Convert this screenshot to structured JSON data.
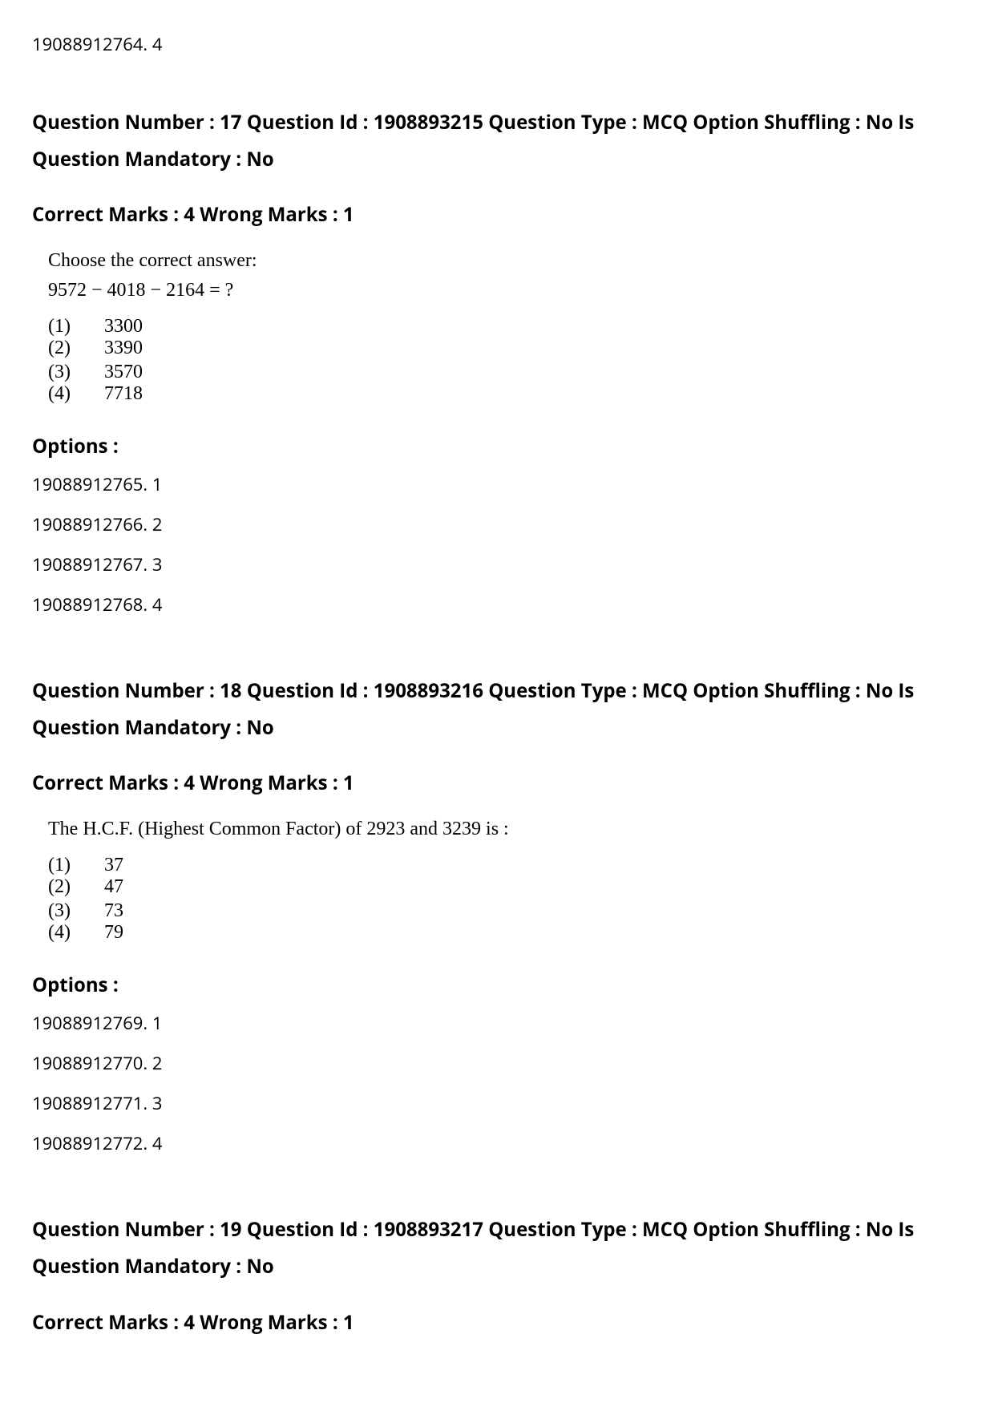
{
  "prev_option": "19088912764. 4",
  "questions": [
    {
      "header": "Question Number : 17 Question Id : 1908893215 Question Type : MCQ Option Shuffling : No Is Question Mandatory : No",
      "marks": "Correct Marks : 4 Wrong Marks : 1",
      "instruction": "Choose the correct answer:",
      "equation": "9572 − 4018 − 2164 = ?",
      "answers": [
        {
          "num": "(1)",
          "val": "3300"
        },
        {
          "num": "(2)",
          "val": "3390"
        },
        {
          "num": "(3)",
          "val": "3570"
        },
        {
          "num": "(4)",
          "val": "7718"
        }
      ],
      "options_label": "Options :",
      "options": [
        "19088912765. 1",
        "19088912766. 2",
        "19088912767. 3",
        "19088912768. 4"
      ]
    },
    {
      "header": "Question Number : 18 Question Id : 1908893216 Question Type : MCQ Option Shuffling : No Is Question Mandatory : No",
      "marks": "Correct Marks : 4 Wrong Marks : 1",
      "instruction": "The H.C.F. (Highest Common Factor) of 2923 and 3239 is :",
      "equation": "",
      "answers": [
        {
          "num": "(1)",
          "val": "37"
        },
        {
          "num": "(2)",
          "val": "47"
        },
        {
          "num": "(3)",
          "val": "73"
        },
        {
          "num": "(4)",
          "val": "79"
        }
      ],
      "options_label": "Options :",
      "options": [
        "19088912769. 1",
        "19088912770. 2",
        "19088912771. 3",
        "19088912772. 4"
      ]
    },
    {
      "header": "Question Number : 19 Question Id : 1908893217 Question Type : MCQ Option Shuffling : No Is Question Mandatory : No",
      "marks": "Correct Marks : 4 Wrong Marks : 1",
      "instruction": "",
      "equation": "",
      "answers": [],
      "options_label": "",
      "options": []
    }
  ]
}
